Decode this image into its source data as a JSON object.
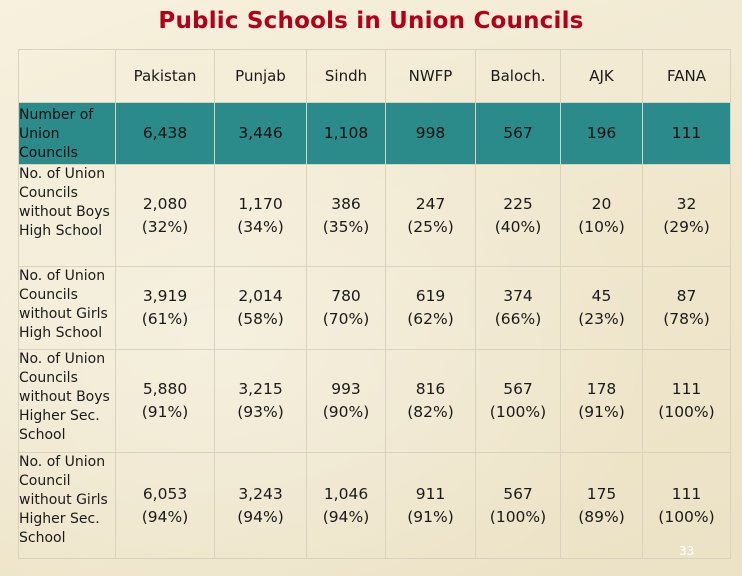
{
  "title": "Public Schools in Union Councils",
  "columns": [
    "Pakistan",
    "Punjab",
    "Sindh",
    "NWFP",
    "Baloch.",
    "AJK",
    "FANA"
  ],
  "rows": [
    {
      "label": "Number of Union Councils",
      "values": [
        "6,438",
        "3,446",
        "1,108",
        "998",
        "567",
        "196",
        "111"
      ]
    },
    {
      "label": "No. of Union Councils without Boys High School",
      "values": [
        [
          "2,080",
          "(32%)"
        ],
        [
          "1,170",
          "(34%)"
        ],
        [
          "386",
          "(35%)"
        ],
        [
          "247",
          "(25%)"
        ],
        [
          "225",
          "(40%)"
        ],
        [
          "20",
          "(10%)"
        ],
        [
          "32",
          "(29%)"
        ]
      ]
    },
    {
      "label": "No. of Union Councils without Girls High School",
      "values": [
        [
          "3,919",
          "(61%)"
        ],
        [
          "2,014",
          "(58%)"
        ],
        [
          "780",
          "(70%)"
        ],
        [
          "619",
          "(62%)"
        ],
        [
          "374",
          "(66%)"
        ],
        [
          "45",
          "(23%)"
        ],
        [
          "87",
          "(78%)"
        ]
      ]
    },
    {
      "label": "No. of Union Councils without Boys Higher Sec. School",
      "values": [
        [
          "5,880",
          "(91%)"
        ],
        [
          "3,215",
          "(93%)"
        ],
        [
          "993",
          "(90%)"
        ],
        [
          "816",
          "(82%)"
        ],
        [
          "567",
          "(100%)"
        ],
        [
          "178",
          "(91%)"
        ],
        [
          "111",
          "(100%)"
        ]
      ]
    },
    {
      "label": "No. of Union Council without Girls Higher Sec. School",
      "values": [
        [
          "6,053",
          "(94%)"
        ],
        [
          "3,243",
          "(94%)"
        ],
        [
          "1,046",
          "(94%)"
        ],
        [
          "911",
          "(91%)"
        ],
        [
          "567",
          "(100%)"
        ],
        [
          "175",
          "(89%)"
        ],
        [
          "111",
          "(100%)"
        ]
      ]
    }
  ],
  "page_number": "33",
  "colors": {
    "title": "#b2001a",
    "highlight_row": "#2b8a8a"
  }
}
